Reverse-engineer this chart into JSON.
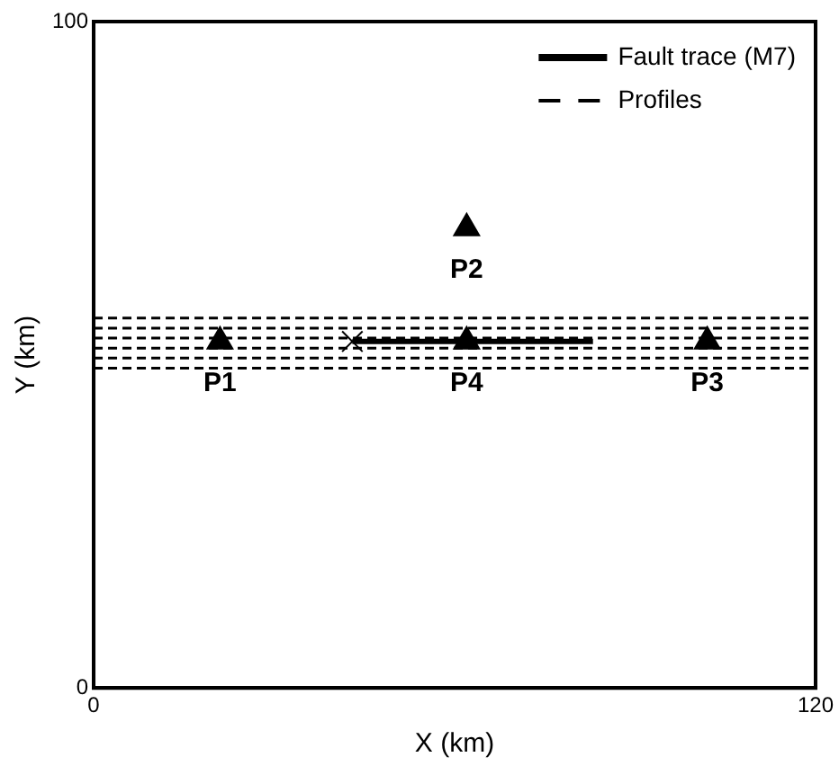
{
  "chart_data": {
    "type": "line",
    "xlabel": "X (km)",
    "ylabel": "Y (km)",
    "xlim": [
      0,
      120
    ],
    "ylim": [
      0,
      100
    ],
    "xticks": [
      0,
      120
    ],
    "yticks": [
      0,
      100
    ],
    "legend": "top right",
    "series": [
      {
        "name": "Fault trace (M7)",
        "color": "#000000",
        "line_style": "solid",
        "marker": "none",
        "x": [
          43,
          83
        ],
        "values": [
          52,
          52
        ]
      },
      {
        "name": "Profiles",
        "color": "#000000",
        "line_style": "dashed",
        "marker": "none",
        "x": [
          0,
          120
        ],
        "values": [
          55.5,
          55.5
        ]
      },
      {
        "color": "#000000",
        "line_style": "dashed",
        "marker": "none",
        "x": [
          0,
          120
        ],
        "values": [
          54,
          54
        ]
      },
      {
        "color": "#000000",
        "line_style": "dashed",
        "marker": "none",
        "x": [
          0,
          120
        ],
        "values": [
          52.5,
          52.5
        ]
      },
      {
        "color": "#000000",
        "line_style": "dashed",
        "marker": "none",
        "x": [
          0,
          120
        ],
        "values": [
          51,
          51
        ]
      },
      {
        "color": "#000000",
        "line_style": "dashed",
        "marker": "none",
        "x": [
          0,
          120
        ],
        "values": [
          49.5,
          49.5
        ]
      },
      {
        "color": "#000000",
        "line_style": "dashed",
        "marker": "none",
        "x": [
          0,
          120
        ],
        "values": [
          48,
          48
        ]
      },
      {
        "type": "scatter",
        "color": "#000000",
        "marker": "triangle",
        "x": [
          21,
          62,
          102,
          62
        ],
        "values": [
          52,
          69,
          52,
          52
        ]
      },
      {
        "type": "scatter",
        "color": "#000000",
        "marker": "cross",
        "x": [
          43
        ],
        "values": [
          52
        ]
      }
    ],
    "annotations": [
      {
        "text": "P1",
        "x": 21,
        "y": 52
      },
      {
        "text": "P2",
        "x": 62,
        "y": 69
      },
      {
        "text": "P3",
        "x": 102,
        "y": 52
      },
      {
        "text": "P4",
        "x": 62,
        "y": 52
      }
    ]
  }
}
